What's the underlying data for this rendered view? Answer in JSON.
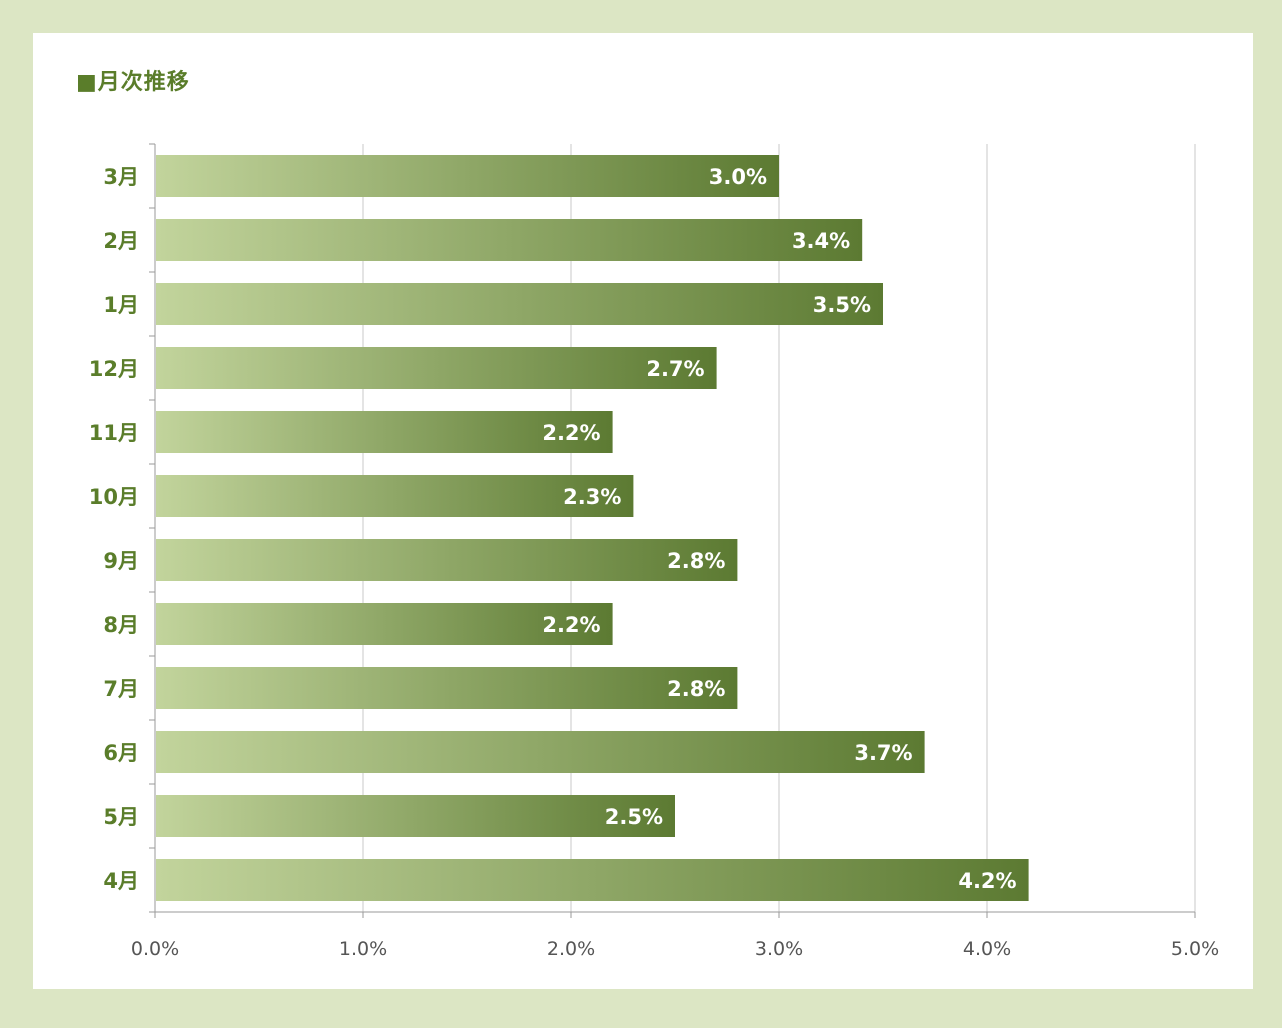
{
  "chart_data": {
    "type": "bar",
    "orientation": "horizontal",
    "title": "■月次推移",
    "categories": [
      "3月",
      "2月",
      "1月",
      "12月",
      "11月",
      "10月",
      "9月",
      "8月",
      "7月",
      "6月",
      "5月",
      "4月"
    ],
    "values": [
      3.0,
      3.4,
      3.5,
      2.7,
      2.2,
      2.3,
      2.8,
      2.2,
      2.8,
      3.7,
      2.5,
      4.2
    ],
    "data_labels": [
      "3.0%",
      "3.4%",
      "3.5%",
      "2.7%",
      "2.2%",
      "2.3%",
      "2.8%",
      "2.2%",
      "2.8%",
      "3.7%",
      "2.5%",
      "4.2%"
    ],
    "x_ticks": [
      0,
      1,
      2,
      3,
      4,
      5
    ],
    "x_tick_labels": [
      "0.0%",
      "1.0%",
      "2.0%",
      "3.0%",
      "4.0%",
      "5.0%"
    ],
    "xlim": [
      0,
      5
    ],
    "grid": "vertical",
    "legend": "none",
    "colors": {
      "bar_gradient_start": "#c2d49c",
      "bar_gradient_end": "#5c7a32",
      "label_text": "#5a7d2a",
      "page_background": "#dce6c4",
      "frame_background": "#ffffff",
      "gridline": "#c8c8c8",
      "axis": "#9a9a9a"
    }
  }
}
